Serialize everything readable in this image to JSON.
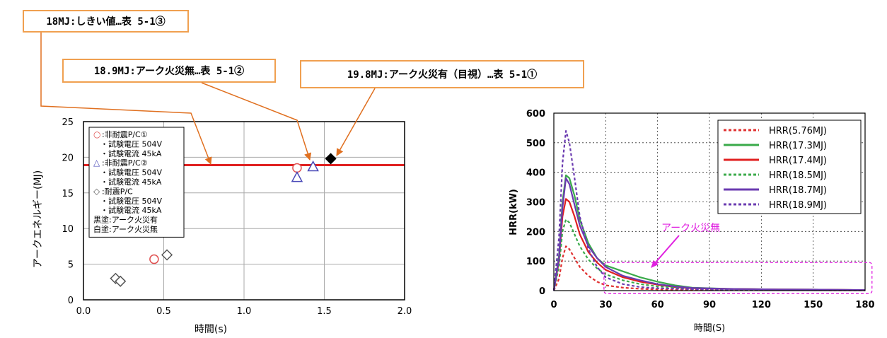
{
  "callouts": {
    "c1": "18MJ:しきい値…表 5-1③",
    "c2": "18.9MJ:アーク火災無…表 5-1②",
    "c3": "19.8MJ:アーク火災有（目視）…表 5-1①"
  },
  "chart_data": [
    {
      "type": "scatter",
      "xlabel": "時間(s)",
      "ylabel": "アークエネルギー(MJ)",
      "xlim": [
        0,
        2.0
      ],
      "ylim": [
        0,
        25
      ],
      "x_ticks": [
        "0.0",
        "0.5",
        "1.0",
        "1.5",
        "2.0"
      ],
      "y_ticks": [
        "0",
        "5",
        "10",
        "15",
        "20",
        "25"
      ],
      "grid": true,
      "legend_position": "top-left",
      "threshold": {
        "y": 18.9,
        "color": "#e02020"
      },
      "legend": [
        {
          "marker": "○",
          "color": "#e05050",
          "lines": [
            ":非耐震P/C①",
            "・試験電圧 504V",
            "・試験電流 45kA"
          ]
        },
        {
          "marker": "△",
          "color": "#4a4ab8",
          "lines": [
            ":非耐震P/C②",
            "・試験電圧 504V",
            "・試験電流 45kA"
          ]
        },
        {
          "marker": "◇",
          "color": "#555555",
          "lines": [
            ":耐震P/C",
            "・試験電圧 504V",
            "・試験電流 45kA"
          ]
        },
        {
          "marker": "",
          "color": "#000000",
          "lines": [
            "黒塗:アーク火災有"
          ]
        },
        {
          "marker": "",
          "color": "#000000",
          "lines": [
            "白塗:アーク火災無"
          ]
        }
      ],
      "series": [
        {
          "marker": "circle",
          "color": "#e05050",
          "filled": false,
          "points": [
            [
              0.44,
              5.7
            ],
            [
              1.33,
              18.5
            ]
          ]
        },
        {
          "marker": "triangle",
          "color": "#4a4ab8",
          "filled": false,
          "points": [
            [
              1.33,
              17.2
            ],
            [
              1.43,
              18.7
            ]
          ]
        },
        {
          "marker": "diamond",
          "color": "#555555",
          "filled": false,
          "points": [
            [
              0.2,
              3.0
            ],
            [
              0.23,
              2.6
            ],
            [
              0.52,
              6.3
            ]
          ]
        },
        {
          "marker": "diamond",
          "color": "#000000",
          "filled": true,
          "points": [
            [
              1.54,
              19.8
            ]
          ]
        }
      ]
    },
    {
      "type": "line",
      "xlabel": "時間(S)",
      "ylabel": "HRR(kW)",
      "xlim": [
        0,
        180
      ],
      "ylim": [
        0,
        600
      ],
      "x_ticks": [
        "0",
        "30",
        "60",
        "90",
        "120",
        "150",
        "180"
      ],
      "y_ticks": [
        "0",
        "100",
        "200",
        "300",
        "400",
        "500",
        "600"
      ],
      "grid": true,
      "legend_position": "top-right",
      "annotation": {
        "text": "アーク火災無",
        "color": "#e020e0"
      },
      "series": [
        {
          "name": "HRR(5.76MJ)",
          "color": "#e03030",
          "dash": "dotted",
          "x": [
            0,
            3,
            5,
            7,
            9,
            12,
            15,
            20,
            25,
            30,
            40,
            50,
            60,
            80,
            100,
            130,
            160,
            180
          ],
          "y": [
            0,
            40,
            110,
            150,
            140,
            110,
            80,
            50,
            30,
            18,
            10,
            6,
            4,
            3,
            2,
            2,
            1,
            1
          ]
        },
        {
          "name": "HRR(17.3MJ)",
          "color": "#3aaa4a",
          "dash": "solid",
          "x": [
            0,
            3,
            5,
            7,
            9,
            12,
            15,
            20,
            25,
            30,
            35,
            40,
            50,
            60,
            70,
            80,
            100,
            130,
            160,
            180
          ],
          "y": [
            0,
            120,
            300,
            390,
            380,
            320,
            240,
            160,
            110,
            85,
            75,
            65,
            45,
            30,
            18,
            10,
            6,
            4,
            3,
            2
          ]
        },
        {
          "name": "HRR(17.4MJ)",
          "color": "#e02020",
          "dash": "solid",
          "x": [
            0,
            3,
            5,
            7,
            9,
            12,
            15,
            20,
            25,
            30,
            40,
            50,
            60,
            70,
            80,
            100,
            130,
            160,
            180
          ],
          "y": [
            0,
            100,
            250,
            310,
            300,
            250,
            190,
            130,
            95,
            70,
            45,
            30,
            20,
            12,
            8,
            6,
            4,
            3,
            2
          ]
        },
        {
          "name": "HRR(18.5MJ)",
          "color": "#3aaa4a",
          "dash": "dotted",
          "x": [
            0,
            3,
            5,
            7,
            9,
            12,
            15,
            20,
            25,
            30,
            40,
            50,
            60,
            80,
            100,
            130,
            160,
            180
          ],
          "y": [
            0,
            80,
            200,
            240,
            230,
            190,
            150,
            105,
            75,
            55,
            35,
            22,
            14,
            8,
            5,
            3,
            2,
            2
          ]
        },
        {
          "name": "HRR(18.7MJ)",
          "color": "#6a3ab0",
          "dash": "solid",
          "x": [
            0,
            3,
            5,
            7,
            9,
            12,
            15,
            20,
            25,
            30,
            40,
            50,
            60,
            70,
            80,
            100,
            130,
            160,
            180
          ],
          "y": [
            0,
            110,
            280,
            380,
            360,
            290,
            220,
            150,
            110,
            80,
            50,
            35,
            22,
            14,
            9,
            6,
            4,
            3,
            2
          ]
        },
        {
          "name": "HRR(18.9MJ)",
          "color": "#6a3ab0",
          "dash": "dotted",
          "x": [
            0,
            3,
            5,
            7,
            9,
            12,
            15,
            20,
            25,
            30,
            40,
            50,
            60,
            80,
            100,
            130,
            160,
            180
          ],
          "y": [
            0,
            180,
            430,
            540,
            500,
            380,
            250,
            140,
            80,
            45,
            22,
            12,
            8,
            5,
            3,
            2,
            2,
            1
          ]
        }
      ]
    }
  ]
}
